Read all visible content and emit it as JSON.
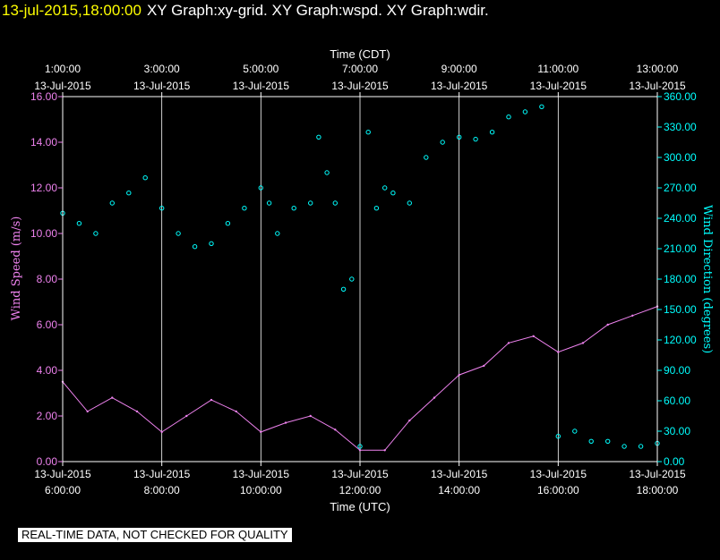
{
  "header": {
    "timestamp": "13-jul-2015,18:00:00",
    "graphs": "XY Graph:xy-grid.  XY Graph:wspd.  XY Graph:wdir."
  },
  "banner": "REAL-TIME DATA, NOT CHECKED FOR QUALITY",
  "colors": {
    "background": "#000000",
    "frame": "#ffffff",
    "wind_speed": "#ee82ee",
    "wind_direction": "#00ffff",
    "header_date": "#ffff00"
  },
  "chart_data": {
    "type": "line+scatter",
    "grid": true,
    "top_axis": {
      "title": "Time (CDT)",
      "ticks": [
        {
          "time": "1:00:00",
          "date": "13-Jul-2015"
        },
        {
          "time": "3:00:00",
          "date": "13-Jul-2015"
        },
        {
          "time": "5:00:00",
          "date": "13-Jul-2015"
        },
        {
          "time": "7:00:00",
          "date": "13-Jul-2015"
        },
        {
          "time": "9:00:00",
          "date": "13-Jul-2015"
        },
        {
          "time": "11:00:00",
          "date": "13-Jul-2015"
        },
        {
          "time": "13:00:00",
          "date": "13-Jul-2015"
        }
      ]
    },
    "bottom_axis": {
      "title": "Time (UTC)",
      "range": [
        "13-Jul-2015 06:00",
        "13-Jul-2015 18:00"
      ],
      "ticks": [
        {
          "date": "13-Jul-2015",
          "time": "6:00:00"
        },
        {
          "date": "13-Jul-2015",
          "time": "8:00:00"
        },
        {
          "date": "13-Jul-2015",
          "time": "10:00:00"
        },
        {
          "date": "13-Jul-2015",
          "time": "12:00:00"
        },
        {
          "date": "13-Jul-2015",
          "time": "14:00:00"
        },
        {
          "date": "13-Jul-2015",
          "time": "16:00:00"
        },
        {
          "date": "13-Jul-2015",
          "time": "18:00:00"
        }
      ]
    },
    "left_axis": {
      "title": "Wind Speed (m/s)",
      "ylim": [
        0,
        16
      ],
      "ticks": [
        "0.00",
        "2.00",
        "4.00",
        "6.00",
        "8.00",
        "10.00",
        "12.00",
        "14.00",
        "16.00"
      ]
    },
    "right_axis": {
      "title": "Wind Direction (degrees)",
      "ylim": [
        0,
        360
      ],
      "ticks": [
        "0.00",
        "30.00",
        "60.00",
        "90.00",
        "120.00",
        "150.00",
        "180.00",
        "210.00",
        "240.00",
        "270.00",
        "300.00",
        "330.00",
        "360.00"
      ]
    },
    "wind_speed": {
      "mode": "line",
      "x_utc": [
        "06:00",
        "06:30",
        "07:00",
        "07:30",
        "08:00",
        "08:30",
        "09:00",
        "09:30",
        "10:00",
        "10:30",
        "11:00",
        "11:30",
        "12:00",
        "12:30",
        "13:00",
        "13:30",
        "14:00",
        "14:30",
        "15:00",
        "15:30",
        "16:00",
        "16:30",
        "17:00",
        "17:30",
        "18:00"
      ],
      "values": [
        3.5,
        2.2,
        2.8,
        2.2,
        1.3,
        2.0,
        2.7,
        2.2,
        1.3,
        1.7,
        2.0,
        1.4,
        0.5,
        0.5,
        1.8,
        2.8,
        3.8,
        4.2,
        5.2,
        5.5,
        4.8,
        5.2,
        6.0,
        6.4,
        6.8
      ]
    },
    "wind_direction": {
      "mode": "scatter",
      "x_utc": [
        "06:00",
        "06:20",
        "06:40",
        "07:00",
        "07:20",
        "07:40",
        "08:00",
        "08:20",
        "08:40",
        "09:00",
        "09:20",
        "09:40",
        "10:00",
        "10:10",
        "10:20",
        "10:40",
        "11:00",
        "11:10",
        "11:20",
        "11:30",
        "11:40",
        "11:50",
        "12:00",
        "12:10",
        "12:20",
        "12:30",
        "12:40",
        "13:00",
        "13:20",
        "13:40",
        "14:00",
        "14:20",
        "14:40",
        "15:00",
        "15:20",
        "15:40",
        "16:00",
        "16:20",
        "16:40",
        "17:00",
        "17:20",
        "17:40",
        "18:00"
      ],
      "values": [
        245,
        235,
        225,
        255,
        265,
        280,
        250,
        225,
        212,
        215,
        235,
        250,
        270,
        255,
        225,
        250,
        255,
        320,
        285,
        255,
        170,
        180,
        15,
        325,
        250,
        270,
        265,
        255,
        300,
        315,
        320,
        318,
        325,
        340,
        345,
        350,
        25,
        30,
        20,
        20,
        15,
        15,
        18
      ]
    }
  }
}
